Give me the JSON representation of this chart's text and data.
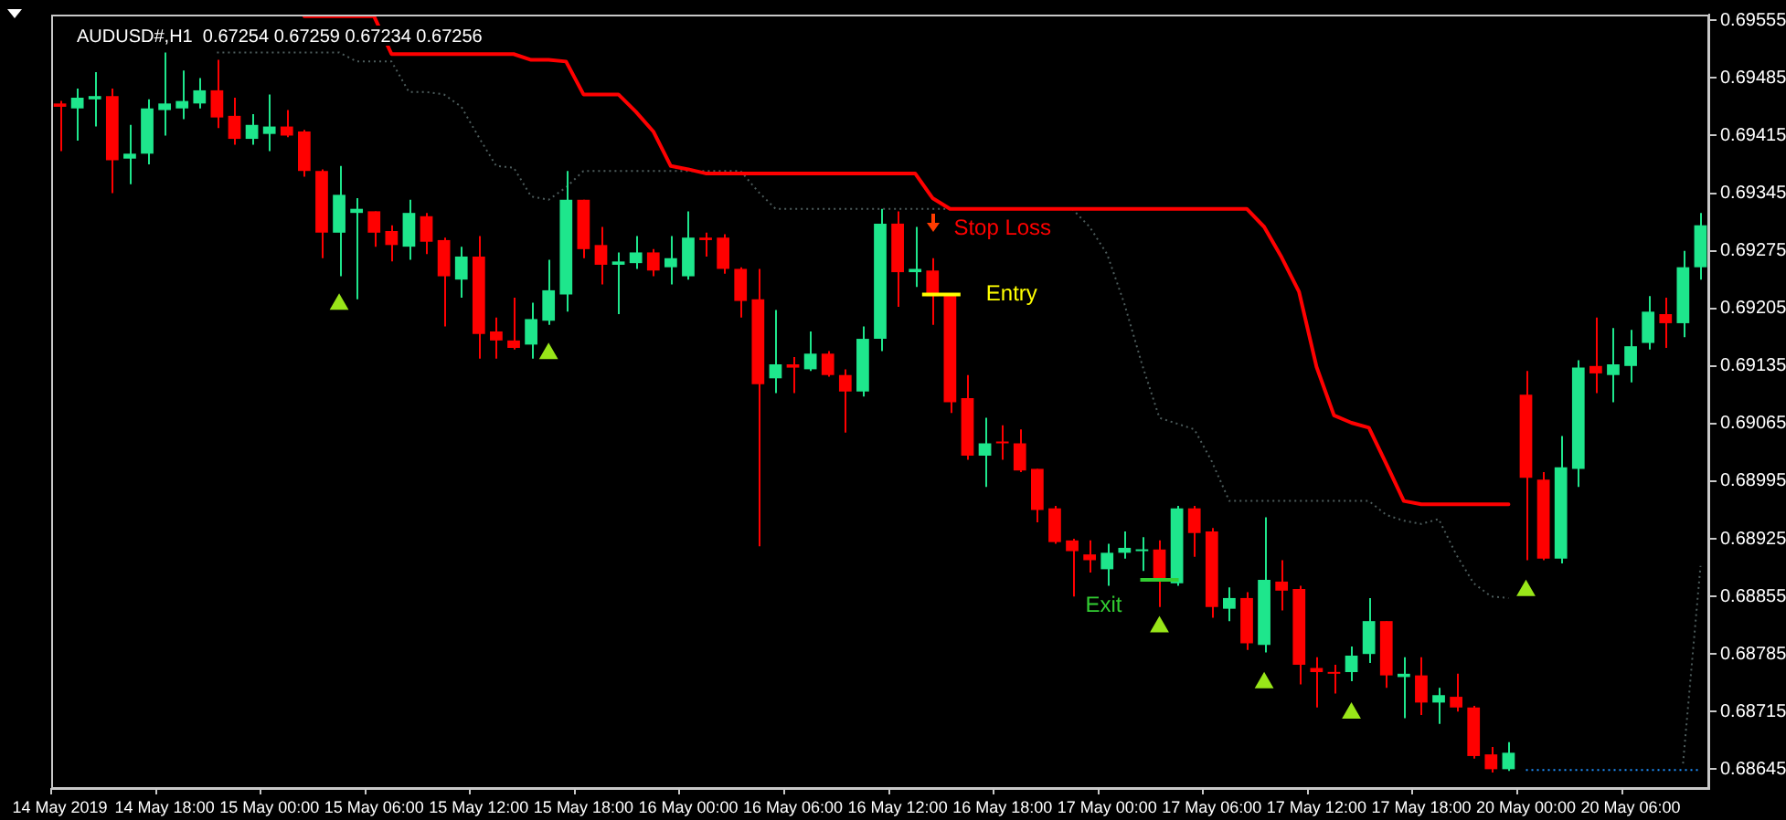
{
  "chart_data": {
    "type": "candlestick",
    "title": "AUDUSD#,H1  0.67254 0.67259 0.67234 0.67256",
    "categories": [
      "14 May 2019",
      null,
      null,
      null,
      null,
      null,
      "14 May 18:00",
      null,
      null,
      null,
      null,
      null,
      "15 May 00:00",
      null,
      null,
      null,
      null,
      null,
      "15 May 06:00",
      null,
      null,
      null,
      null,
      null,
      "15 May 12:00",
      null,
      null,
      null,
      null,
      null,
      "15 May 18:00",
      null,
      null,
      null,
      null,
      null,
      "16 May 00:00",
      null,
      null,
      null,
      null,
      null,
      "16 May 06:00",
      null,
      null,
      null,
      null,
      null,
      "16 May 12:00",
      null,
      null,
      null,
      null,
      null,
      "16 May 18:00",
      null,
      null,
      null,
      null,
      null,
      "17 May 00:00",
      null,
      null,
      null,
      null,
      null,
      "17 May 06:00",
      null,
      null,
      null,
      null,
      null,
      "17 May 12:00",
      null,
      null,
      null,
      null,
      null,
      "17 May 18:00",
      null,
      null,
      null,
      null,
      null,
      "20 May 00:00",
      null,
      null,
      null,
      null,
      null,
      "20 May 06:00",
      null,
      null,
      null,
      null
    ],
    "ohlc": [
      [
        0.69454,
        0.69457,
        0.69396,
        0.6945
      ],
      [
        0.69448,
        0.69472,
        0.69409,
        0.69461
      ],
      [
        0.69459,
        0.69492,
        0.69426,
        0.69463
      ],
      [
        0.69463,
        0.69472,
        0.69345,
        0.69385
      ],
      [
        0.69387,
        0.69428,
        0.69356,
        0.69393
      ],
      [
        0.69393,
        0.69459,
        0.6938,
        0.69448
      ],
      [
        0.69446,
        0.69516,
        0.69415,
        0.69454
      ],
      [
        0.69448,
        0.69494,
        0.69435,
        0.69457
      ],
      [
        0.69454,
        0.69485,
        0.69448,
        0.6947
      ],
      [
        0.6947,
        0.69507,
        0.69424,
        0.69437
      ],
      [
        0.69439,
        0.69461,
        0.69404,
        0.69411
      ],
      [
        0.69411,
        0.69441,
        0.69404,
        0.69428
      ],
      [
        0.69417,
        0.69465,
        0.69396,
        0.69426
      ],
      [
        0.69426,
        0.69446,
        0.69413,
        0.69415
      ],
      [
        0.6942,
        0.69422,
        0.69365,
        0.69372
      ],
      [
        0.69372,
        0.69374,
        0.69266,
        0.69297
      ],
      [
        0.69297,
        0.69378,
        0.69244,
        0.69343
      ],
      [
        0.69321,
        0.69339,
        0.69216,
        0.69326
      ],
      [
        0.69323,
        0.69323,
        0.6928,
        0.69297
      ],
      [
        0.69299,
        0.69306,
        0.69262,
        0.69282
      ],
      [
        0.6928,
        0.69337,
        0.69264,
        0.69321
      ],
      [
        0.69317,
        0.69321,
        0.69271,
        0.69286
      ],
      [
        0.69288,
        0.69291,
        0.69183,
        0.69244
      ],
      [
        0.6924,
        0.6928,
        0.69218,
        0.69268
      ],
      [
        0.69268,
        0.69293,
        0.69144,
        0.69174
      ],
      [
        0.69177,
        0.69194,
        0.69144,
        0.69166
      ],
      [
        0.69166,
        0.69218,
        0.69155,
        0.69157
      ],
      [
        0.69161,
        0.69212,
        0.69144,
        0.69192
      ],
      [
        0.6919,
        0.69264,
        0.69185,
        0.69227
      ],
      [
        0.69222,
        0.69372,
        0.69201,
        0.69337
      ],
      [
        0.69337,
        0.69337,
        0.69266,
        0.69277
      ],
      [
        0.69282,
        0.69304,
        0.69234,
        0.69258
      ],
      [
        0.69258,
        0.69273,
        0.69198,
        0.69262
      ],
      [
        0.6926,
        0.69293,
        0.69253,
        0.69273
      ],
      [
        0.69273,
        0.69277,
        0.69244,
        0.69251
      ],
      [
        0.69255,
        0.69293,
        0.69234,
        0.69266
      ],
      [
        0.69244,
        0.69323,
        0.6924,
        0.69291
      ],
      [
        0.69291,
        0.69297,
        0.69268,
        0.69288
      ],
      [
        0.69291,
        0.69295,
        0.69247,
        0.69253
      ],
      [
        0.69253,
        0.69255,
        0.69194,
        0.69214
      ],
      [
        0.69216,
        0.69253,
        0.68916,
        0.69113
      ],
      [
        0.6912,
        0.69203,
        0.69102,
        0.69137
      ],
      [
        0.69137,
        0.69146,
        0.69102,
        0.69133
      ],
      [
        0.69131,
        0.69177,
        0.69129,
        0.6915
      ],
      [
        0.6915,
        0.69153,
        0.69122,
        0.69124
      ],
      [
        0.69124,
        0.69131,
        0.69054,
        0.69104
      ],
      [
        0.69104,
        0.69183,
        0.69098,
        0.69168
      ],
      [
        0.69168,
        0.69326,
        0.69153,
        0.69308
      ],
      [
        0.69308,
        0.69323,
        0.69207,
        0.69249
      ],
      [
        0.69249,
        0.69304,
        0.69231,
        0.69253
      ],
      [
        0.69251,
        0.69266,
        0.69185,
        0.6922
      ],
      [
        0.69222,
        0.69222,
        0.69078,
        0.69091
      ],
      [
        0.69096,
        0.69124,
        0.69021,
        0.69026
      ],
      [
        0.69026,
        0.69072,
        0.68988,
        0.69041
      ],
      [
        0.69043,
        0.69063,
        0.69021,
        0.69041
      ],
      [
        0.69041,
        0.69058,
        0.69006,
        0.69008
      ],
      [
        0.6901,
        0.6901,
        0.68945,
        0.6896
      ],
      [
        0.68962,
        0.68965,
        0.68919,
        0.68921
      ],
      [
        0.68923,
        0.68925,
        0.68855,
        0.6891
      ],
      [
        0.68906,
        0.68923,
        0.68884,
        0.68899
      ],
      [
        0.68888,
        0.68919,
        0.68868,
        0.68908
      ],
      [
        0.68908,
        0.68934,
        0.68901,
        0.68914
      ],
      [
        0.6891,
        0.68927,
        0.68886,
        0.68912
      ],
      [
        0.68912,
        0.68923,
        0.68842,
        0.68875
      ],
      [
        0.68871,
        0.68965,
        0.68868,
        0.68962
      ],
      [
        0.68962,
        0.68965,
        0.68903,
        0.68932
      ],
      [
        0.68934,
        0.68938,
        0.68829,
        0.68842
      ],
      [
        0.6884,
        0.68866,
        0.68825,
        0.68853
      ],
      [
        0.68853,
        0.6886,
        0.6879,
        0.68798
      ],
      [
        0.68796,
        0.68951,
        0.68787,
        0.68875
      ],
      [
        0.68873,
        0.68899,
        0.68838,
        0.68862
      ],
      [
        0.68864,
        0.68868,
        0.68748,
        0.68772
      ],
      [
        0.68768,
        0.68781,
        0.6872,
        0.68763
      ],
      [
        0.68763,
        0.68772,
        0.68737,
        0.68761
      ],
      [
        0.68763,
        0.68794,
        0.68752,
        0.68783
      ],
      [
        0.68785,
        0.68853,
        0.68774,
        0.68825
      ],
      [
        0.68825,
        0.68825,
        0.68744,
        0.68759
      ],
      [
        0.68757,
        0.68781,
        0.68707,
        0.68761
      ],
      [
        0.68759,
        0.68781,
        0.68711,
        0.68726
      ],
      [
        0.68726,
        0.68744,
        0.687,
        0.68735
      ],
      [
        0.68733,
        0.68761,
        0.68715,
        0.6872
      ],
      [
        0.6872,
        0.68722,
        0.68658,
        0.68661
      ],
      [
        0.68663,
        0.68672,
        0.68641,
        0.68645
      ],
      [
        0.68645,
        0.68678,
        0.68643,
        0.68665
      ],
      [
        0.691,
        0.69129,
        0.68899,
        0.68999
      ],
      [
        0.68997,
        0.69006,
        0.68899,
        0.68901
      ],
      [
        0.68901,
        0.6905,
        0.68895,
        0.69012
      ],
      [
        0.6901,
        0.69142,
        0.68988,
        0.69133
      ],
      [
        0.69135,
        0.69194,
        0.69102,
        0.69126
      ],
      [
        0.69124,
        0.69181,
        0.69091,
        0.69137
      ],
      [
        0.69135,
        0.69179,
        0.69115,
        0.69159
      ],
      [
        0.69163,
        0.6922,
        0.69155,
        0.69201
      ],
      [
        0.69198,
        0.69218,
        0.69157,
        0.69187
      ],
      [
        0.69187,
        0.69275,
        0.6917,
        0.69255
      ],
      [
        0.69255,
        0.69321,
        0.6924,
        0.69306
      ]
    ],
    "colors": [
      "#ff0000",
      "#1ee68c",
      "#1ee68c",
      "#ff0000",
      "#1ee68c",
      "#1ee68c",
      "#1ee68c",
      "#1ee68c",
      "#1ee68c",
      "#ff0000",
      "#ff0000",
      "#1ee68c",
      "#1ee68c",
      "#ff0000",
      "#ff0000",
      "#ff0000",
      "#1ee68c",
      "#1ee68c",
      "#ff0000",
      "#ff0000",
      "#1ee68c",
      "#ff0000",
      "#ff0000",
      "#1ee68c",
      "#ff0000",
      "#ff0000",
      "#ff0000",
      "#1ee68c",
      "#1ee68c",
      "#1ee68c",
      "#ff0000",
      "#ff0000",
      "#1ee68c",
      "#1ee68c",
      "#ff0000",
      "#1ee68c",
      "#1ee68c",
      "#ff0000",
      "#ff0000",
      "#ff0000",
      "#ff0000",
      "#1ee68c",
      "#ff0000",
      "#1ee68c",
      "#ff0000",
      "#ff0000",
      "#1ee68c",
      "#1ee68c",
      "#ff0000",
      "#1ee68c",
      "#ff0000",
      "#ff0000",
      "#ff0000",
      "#1ee68c",
      "#ff0000",
      "#ff0000",
      "#ff0000",
      "#ff0000",
      "#ff0000",
      "#ff0000",
      "#1ee68c",
      "#1ee68c",
      "#1ee68c",
      "#ff0000",
      "#1ee68c",
      "#ff0000",
      "#ff0000",
      "#1ee68c",
      "#ff0000",
      "#1ee68c",
      "#ff0000",
      "#ff0000",
      "#ff0000",
      "#ff0000",
      "#1ee68c",
      "#1ee68c",
      "#ff0000",
      "#1ee68c",
      "#ff0000",
      "#1ee68c",
      "#ff0000",
      "#ff0000",
      "#ff0000",
      "#1ee68c",
      "#ff0000",
      "#ff0000",
      "#1ee68c",
      "#1ee68c",
      "#ff0000",
      "#1ee68c",
      "#1ee68c",
      "#1ee68c",
      "#ff0000",
      "#1ee68c",
      "#1ee68c"
    ],
    "series": [
      {
        "name": "Stop Loss",
        "type": "line",
        "color": "#ff0000",
        "values": [
          null,
          null,
          null,
          null,
          null,
          null,
          null,
          null,
          null,
          null,
          null,
          null,
          null,
          null,
          0.6956,
          0.6956,
          0.6956,
          0.6956,
          0.6956,
          0.69514,
          0.69514,
          0.69514,
          0.69514,
          0.69514,
          0.69514,
          0.69514,
          0.69514,
          0.69507,
          0.69507,
          0.69505,
          0.69465,
          0.69465,
          0.69465,
          0.69444,
          0.6942,
          0.69378,
          0.69374,
          0.69369,
          0.69369,
          0.69369,
          0.69369,
          0.69369,
          0.69369,
          0.69369,
          0.69369,
          0.69369,
          0.69369,
          0.69369,
          0.69369,
          0.69369,
          0.69339,
          0.69326,
          0.69326,
          0.69326,
          0.69326,
          0.69326,
          0.69326,
          0.69326,
          0.69326,
          0.69326,
          0.69326,
          0.69326,
          0.69326,
          0.69326,
          0.69326,
          0.69326,
          0.69326,
          0.69326,
          0.69326,
          0.69304,
          0.69267,
          0.69225,
          0.69134,
          0.69075,
          0.69066,
          0.6906,
          0.69016,
          0.68971,
          0.68967,
          0.68967,
          0.68967,
          0.68967,
          0.68967,
          0.68967,
          null,
          null,
          null,
          null,
          null,
          null,
          null,
          null,
          null,
          null,
          null
        ]
      },
      {
        "type": "line",
        "color": "#4d5c5c",
        "line_style": "dotted",
        "values": [
          null,
          null,
          null,
          null,
          null,
          null,
          null,
          null,
          null,
          0.69516,
          0.69516,
          0.69516,
          0.69516,
          0.69516,
          0.69516,
          0.69516,
          0.69516,
          0.69505,
          0.69505,
          0.69505,
          0.69468,
          0.69468,
          0.69465,
          0.6945,
          0.69413,
          0.69378,
          0.69376,
          0.69341,
          0.69337,
          0.69352,
          0.69372,
          0.69372,
          0.69372,
          0.69372,
          0.69372,
          0.69372,
          0.69372,
          0.69372,
          0.69372,
          0.69372,
          0.69347,
          0.69326,
          0.69326,
          0.69326,
          0.69326,
          0.69326,
          0.69326,
          0.69326,
          0.69326,
          0.69326,
          0.69326,
          0.69326,
          null,
          null,
          null,
          null,
          null,
          null,
          0.69326,
          0.69304,
          0.69271,
          0.6921,
          0.69137,
          0.69072,
          0.69065,
          0.69058,
          0.69019,
          0.68971,
          0.68971,
          0.68971,
          0.68971,
          0.68971,
          0.68971,
          0.68971,
          0.68971,
          0.68971,
          0.68954,
          0.68947,
          0.68943,
          0.68949,
          0.68906,
          0.68871,
          0.68855,
          0.68853,
          null,
          null,
          null,
          null,
          null,
          null,
          null,
          null,
          null,
          0.68652,
          0.68892
        ]
      },
      {
        "type": "line",
        "color": "#1e90ff",
        "line_style": "dotted",
        "values": [
          null,
          null,
          null,
          null,
          null,
          null,
          null,
          null,
          null,
          null,
          null,
          null,
          null,
          null,
          null,
          null,
          null,
          null,
          null,
          null,
          null,
          null,
          null,
          null,
          null,
          null,
          null,
          null,
          null,
          null,
          null,
          null,
          null,
          null,
          null,
          null,
          null,
          null,
          null,
          null,
          null,
          null,
          null,
          null,
          null,
          null,
          null,
          null,
          null,
          null,
          null,
          null,
          null,
          null,
          null,
          null,
          null,
          null,
          null,
          null,
          null,
          null,
          null,
          null,
          null,
          null,
          null,
          null,
          null,
          null,
          null,
          null,
          null,
          null,
          null,
          null,
          null,
          null,
          null,
          null,
          null,
          null,
          null,
          null,
          0.68644,
          0.68644,
          0.68644,
          0.68644,
          0.68644,
          0.68644,
          0.68644,
          0.68644,
          0.68644,
          0.68644,
          0.68644
        ]
      },
      {
        "type": "scatter",
        "color": "#99e619",
        "marker": "triangle",
        "values": [
          null,
          null,
          null,
          null,
          null,
          null,
          null,
          null,
          null,
          null,
          null,
          null,
          null,
          null,
          null,
          null,
          0.6921,
          null,
          null,
          null,
          null,
          null,
          null,
          null,
          null,
          null,
          null,
          null,
          0.6915,
          null,
          null,
          null,
          null,
          null,
          null,
          null,
          null,
          null,
          null,
          null,
          null,
          null,
          null,
          null,
          null,
          null,
          null,
          null,
          null,
          null,
          null,
          null,
          null,
          null,
          null,
          null,
          null,
          null,
          null,
          null,
          null,
          null,
          null,
          0.68818,
          null,
          null,
          null,
          null,
          null,
          0.6875,
          null,
          null,
          null,
          null,
          0.68713,
          null,
          null,
          null,
          null,
          null,
          null,
          null,
          null,
          null,
          0.68862,
          null,
          null,
          null,
          null,
          null,
          null,
          null,
          null,
          null,
          null
        ]
      }
    ],
    "ylim": [
      0.68621,
      0.69562
    ],
    "yticks": [
      0.69555,
      0.69485,
      0.69415,
      0.69345,
      0.69275,
      0.69205,
      0.69135,
      0.69065,
      0.68995,
      0.68925,
      0.68855,
      0.68785,
      0.68715,
      0.68645
    ],
    "ref_lines": [
      {
        "axis": "y",
        "value": 0.69222,
        "label": "Entry",
        "color": "#ffff00"
      },
      {
        "axis": "y",
        "value": 0.68875,
        "label": "Exit",
        "color": "#32cd32"
      }
    ],
    "grid": false,
    "legend": false
  }
}
